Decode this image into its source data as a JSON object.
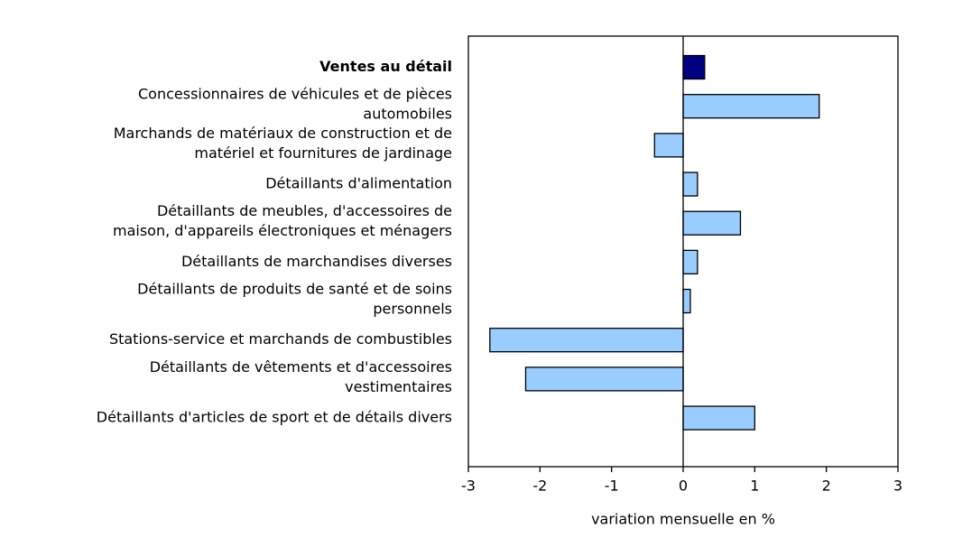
{
  "chart_data": {
    "type": "barh",
    "categories": [
      "Ventes au détail",
      "Concessionnaires de véhicules et de pièces\nautomobiles",
      "Marchands de matériaux de construction et de\nmatériel et fournitures de jardinage",
      "Détaillants d'alimentation",
      "Détaillants de meubles, d'accessoires de\nmaison, d'appareils électroniques et ménagers",
      "Détaillants de marchandises diverses",
      "Détaillants de produits de santé et de soins\npersonnels",
      "Stations-service et marchands de combustibles",
      "Détaillants de vêtements et d'accessoires\nvestimentaires",
      "Détaillants d'articles de sport et de détails divers"
    ],
    "values": [
      0.3,
      1.9,
      -0.4,
      0.2,
      0.8,
      0.2,
      0.1,
      -2.7,
      -2.2,
      1.0
    ],
    "colors": [
      "#000080",
      "#99ccff",
      "#99ccff",
      "#99ccff",
      "#99ccff",
      "#99ccff",
      "#99ccff",
      "#99ccff",
      "#99ccff",
      "#99ccff"
    ],
    "bold": [
      true,
      false,
      false,
      false,
      false,
      false,
      false,
      false,
      false,
      false
    ],
    "xlabel": "variation mensuelle en %",
    "xlim": [
      -3,
      3
    ],
    "xticks": [
      -3,
      -2,
      -1,
      0,
      1,
      2,
      3
    ]
  }
}
